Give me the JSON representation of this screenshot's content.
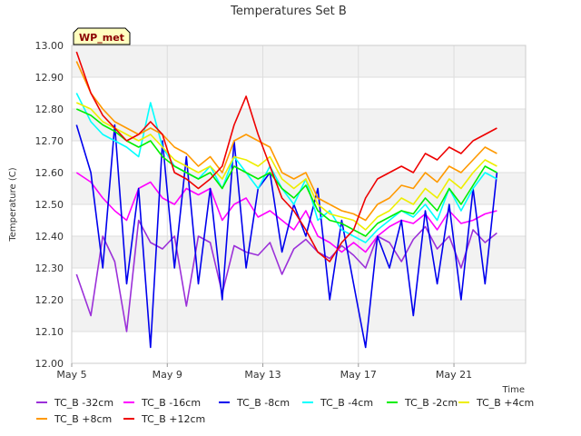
{
  "chart_data": {
    "type": "line",
    "title": "Temperatures Set B",
    "xlabel": "Time",
    "ylabel": "Temperature (C)",
    "watermark": "WP_met",
    "xlim": [
      0,
      19
    ],
    "ylim": [
      12.0,
      13.0
    ],
    "grid": true,
    "legend_position": "bottom",
    "x_ticks": [
      {
        "label": "May 5",
        "x": 0
      },
      {
        "label": "May 9",
        "x": 4
      },
      {
        "label": "May 13",
        "x": 8
      },
      {
        "label": "May 17",
        "x": 12
      },
      {
        "label": "May 21",
        "x": 16
      }
    ],
    "y_ticks": [
      "12.00",
      "12.10",
      "12.20",
      "12.30",
      "12.40",
      "12.50",
      "12.60",
      "12.70",
      "12.80",
      "12.90",
      "13.00"
    ],
    "x": [
      0.2,
      0.8,
      1.3,
      1.8,
      2.3,
      2.8,
      3.3,
      3.8,
      4.3,
      4.8,
      5.3,
      5.8,
      6.3,
      6.8,
      7.3,
      7.8,
      8.3,
      8.8,
      9.3,
      9.8,
      10.3,
      10.8,
      11.3,
      11.8,
      12.3,
      12.8,
      13.3,
      13.8,
      14.3,
      14.8,
      15.3,
      15.8,
      16.3,
      16.8,
      17.3,
      17.8
    ],
    "series": [
      {
        "name": "TC_B -32cm",
        "color": "#9b30d9",
        "values": [
          12.28,
          12.15,
          12.4,
          12.32,
          12.1,
          12.45,
          12.38,
          12.36,
          12.4,
          12.18,
          12.4,
          12.38,
          12.22,
          12.37,
          12.35,
          12.34,
          12.38,
          12.28,
          12.36,
          12.39,
          12.35,
          12.33,
          12.37,
          12.34,
          12.3,
          12.4,
          12.38,
          12.32,
          12.39,
          12.43,
          12.36,
          12.4,
          12.3,
          12.42,
          12.38,
          12.41
        ]
      },
      {
        "name": "TC_B -16cm",
        "color": "#ff00ff",
        "values": [
          12.6,
          12.57,
          12.52,
          12.48,
          12.45,
          12.55,
          12.57,
          12.52,
          12.5,
          12.55,
          12.53,
          12.55,
          12.45,
          12.5,
          12.52,
          12.46,
          12.48,
          12.45,
          12.42,
          12.48,
          12.4,
          12.38,
          12.35,
          12.38,
          12.35,
          12.4,
          12.43,
          12.45,
          12.44,
          12.47,
          12.42,
          12.48,
          12.44,
          12.45,
          12.47,
          12.48
        ]
      },
      {
        "name": "TC_B -8cm",
        "color": "#0000ee",
        "values": [
          12.75,
          12.6,
          12.3,
          12.75,
          12.25,
          12.55,
          12.05,
          12.7,
          12.3,
          12.65,
          12.25,
          12.55,
          12.2,
          12.7,
          12.3,
          12.55,
          12.6,
          12.35,
          12.5,
          12.4,
          12.55,
          12.2,
          12.45,
          12.25,
          12.05,
          12.4,
          12.3,
          12.45,
          12.15,
          12.48,
          12.25,
          12.5,
          12.2,
          12.55,
          12.25,
          12.6
        ]
      },
      {
        "name": "TC_B -4cm",
        "color": "#00ffff",
        "values": [
          12.85,
          12.76,
          12.72,
          12.7,
          12.68,
          12.65,
          12.82,
          12.68,
          12.62,
          12.6,
          12.58,
          12.62,
          12.55,
          12.65,
          12.6,
          12.55,
          12.62,
          12.55,
          12.5,
          12.58,
          12.45,
          12.48,
          12.42,
          12.4,
          12.38,
          12.42,
          12.45,
          12.48,
          12.46,
          12.5,
          12.45,
          12.55,
          12.48,
          12.55,
          12.6,
          12.58
        ]
      },
      {
        "name": "TC_B -2cm",
        "color": "#00ee00",
        "values": [
          12.8,
          12.78,
          12.75,
          12.73,
          12.7,
          12.68,
          12.7,
          12.65,
          12.62,
          12.6,
          12.58,
          12.6,
          12.55,
          12.62,
          12.6,
          12.58,
          12.6,
          12.55,
          12.52,
          12.56,
          12.48,
          12.45,
          12.44,
          12.42,
          12.4,
          12.44,
          12.46,
          12.48,
          12.47,
          12.52,
          12.48,
          12.55,
          12.5,
          12.56,
          12.62,
          12.6
        ]
      },
      {
        "name": "TC_B +4cm",
        "color": "#eeee00",
        "values": [
          12.82,
          12.8,
          12.76,
          12.74,
          12.72,
          12.7,
          12.72,
          12.68,
          12.64,
          12.62,
          12.6,
          12.62,
          12.58,
          12.65,
          12.64,
          12.62,
          12.65,
          12.58,
          12.55,
          12.58,
          12.5,
          12.47,
          12.46,
          12.45,
          12.42,
          12.46,
          12.48,
          12.52,
          12.5,
          12.55,
          12.52,
          12.58,
          12.55,
          12.6,
          12.64,
          12.62
        ]
      },
      {
        "name": "TC_B +8cm",
        "color": "#ff9900",
        "values": [
          12.95,
          12.85,
          12.8,
          12.76,
          12.74,
          12.72,
          12.74,
          12.72,
          12.68,
          12.66,
          12.62,
          12.65,
          12.6,
          12.7,
          12.72,
          12.7,
          12.68,
          12.6,
          12.58,
          12.6,
          12.52,
          12.5,
          12.48,
          12.47,
          12.45,
          12.5,
          12.52,
          12.56,
          12.55,
          12.6,
          12.57,
          12.62,
          12.6,
          12.64,
          12.68,
          12.66
        ]
      },
      {
        "name": "TC_B +12cm",
        "color": "#ee0000",
        "values": [
          12.98,
          12.85,
          12.78,
          12.74,
          12.7,
          12.72,
          12.76,
          12.72,
          12.6,
          12.58,
          12.55,
          12.58,
          12.62,
          12.75,
          12.84,
          12.72,
          12.62,
          12.52,
          12.48,
          12.42,
          12.35,
          12.32,
          12.38,
          12.42,
          12.52,
          12.58,
          12.6,
          12.62,
          12.6,
          12.66,
          12.64,
          12.68,
          12.66,
          12.7,
          12.72,
          12.74
        ]
      }
    ]
  }
}
